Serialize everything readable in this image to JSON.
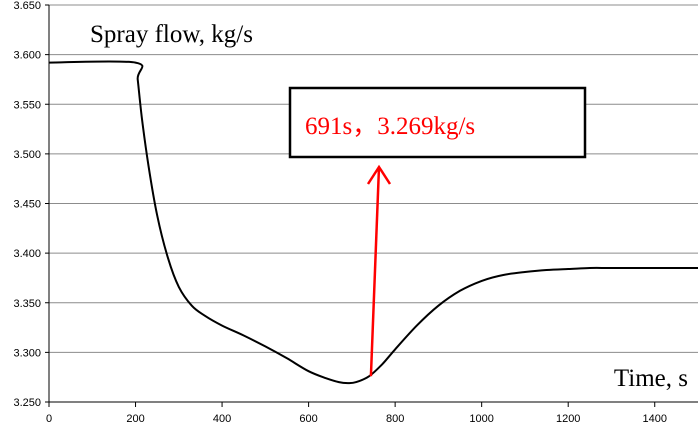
{
  "chart_data": {
    "type": "line",
    "title": "",
    "ylabel": "Spray flow, kg/s",
    "xlabel": "Time, s",
    "xlim": [
      0,
      1500
    ],
    "ylim": [
      3.25,
      3.65
    ],
    "x_ticks": [
      0,
      200,
      400,
      600,
      800,
      1000,
      1200,
      1400
    ],
    "x_tick_labels": [
      "0",
      "200",
      "400",
      "600",
      "800",
      "1000",
      "1200",
      "1400"
    ],
    "y_ticks": [
      3.25,
      3.3,
      3.35,
      3.4,
      3.45,
      3.5,
      3.55,
      3.6,
      3.65
    ],
    "y_tick_labels": [
      "3.250",
      "3.300",
      "3.350",
      "3.400",
      "3.450",
      "3.500",
      "3.550",
      "3.600",
      "3.650"
    ],
    "grid": "horizontal",
    "legend": "none",
    "series": [
      {
        "color": "#000000",
        "x": [
          0,
          200,
          205,
          215,
          230,
          250,
          275,
          300,
          330,
          360,
          400,
          450,
          500,
          550,
          600,
          640,
          670,
          691,
          710,
          740,
          770,
          800,
          850,
          900,
          950,
          1000,
          1050,
          1100,
          1150,
          1200,
          1250,
          1300,
          1400,
          1500
        ],
        "y": [
          3.592,
          3.592,
          3.575,
          3.535,
          3.488,
          3.438,
          3.395,
          3.366,
          3.347,
          3.337,
          3.327,
          3.317,
          3.306,
          3.294,
          3.281,
          3.274,
          3.27,
          3.269,
          3.27,
          3.276,
          3.288,
          3.303,
          3.327,
          3.347,
          3.362,
          3.372,
          3.378,
          3.381,
          3.383,
          3.384,
          3.385,
          3.385,
          3.385,
          3.385
        ]
      }
    ],
    "annotation": {
      "text": "691s，3.269kg/s",
      "text_color": "#ff0000",
      "arrow_color": "#ff0000",
      "point": [
        744,
        3.276
      ]
    }
  }
}
